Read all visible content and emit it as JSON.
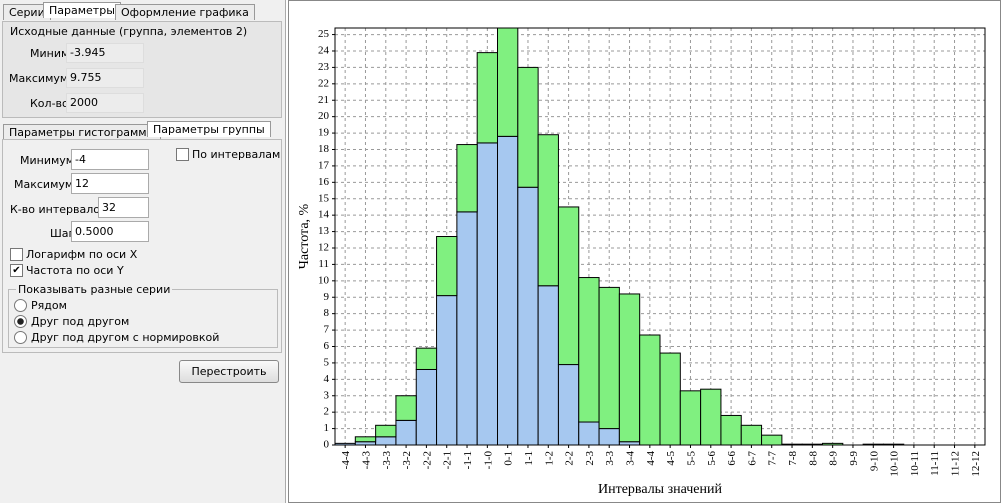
{
  "panel": {
    "tabs": [
      "Серии",
      "Параметры",
      "Оформление графика"
    ],
    "source": {
      "title": "Исходные данные (группа, элементов 2)",
      "fields": [
        {
          "label": "Минимум",
          "value": "-3.945"
        },
        {
          "label": "Максимум",
          "value": "9.755"
        },
        {
          "label": "Кол-во",
          "value": "2000"
        }
      ]
    },
    "subtabs": [
      "Параметры гистограммы",
      "Параметры группы"
    ],
    "fields": [
      {
        "label": "Минимум",
        "value": "-4"
      },
      {
        "label": "Максимум",
        "value": "12"
      },
      {
        "label": "К-во интервалов",
        "value": "32"
      },
      {
        "label": "Шаг",
        "value": "0.5000"
      }
    ],
    "checkboxes": [
      {
        "label": "По интервалам",
        "checked": false
      },
      {
        "label": "Логарифм по оси X",
        "checked": false
      },
      {
        "label": "Частота по оси Y",
        "checked": true
      }
    ],
    "series_group": {
      "title": "Показывать разные серии",
      "options": [
        "Рядом",
        "Друг под другом",
        "Друг под другом с нормировкой"
      ],
      "selected": 1
    },
    "button": "Перестроить"
  },
  "chart_data": {
    "type": "stacked-bar",
    "xlabel": "Интервалы значений",
    "ylabel": "Частота, %",
    "categories": [
      "-4-4",
      "-4-3",
      "-3-3",
      "-3-2",
      "-2-2",
      "-2-1",
      "-1-1",
      "-1-0",
      "0-1",
      "1-1",
      "1-2",
      "2-2",
      "2-3",
      "3-3",
      "3-4",
      "4-4",
      "4-5",
      "5-5",
      "5-6",
      "6-6",
      "6-7",
      "7-7",
      "7-8",
      "8-8",
      "8-9",
      "9-9",
      "9-10",
      "10-10",
      "10-11",
      "11-11",
      "11-12",
      "12-12"
    ],
    "series": [
      {
        "color": "#a6c8f0",
        "values": [
          0.1,
          0.2,
          0.5,
          1.5,
          4.6,
          9.1,
          14.2,
          18.4,
          18.8,
          15.7,
          9.7,
          4.9,
          1.4,
          1.0,
          0.2,
          0,
          0,
          0,
          0,
          0,
          0,
          0,
          0,
          0,
          0,
          0,
          0,
          0,
          0,
          0,
          0,
          0
        ]
      },
      {
        "color": "#80f080",
        "values": [
          0,
          0.3,
          0.7,
          1.5,
          1.3,
          3.6,
          4.1,
          5.5,
          6.6,
          7.3,
          9.2,
          9.6,
          8.8,
          8.6,
          9.0,
          6.7,
          5.6,
          3.3,
          3.4,
          1.8,
          1.2,
          0.6,
          0.05,
          0.05,
          0.1,
          0,
          0.05,
          0.05,
          0,
          0,
          0,
          0
        ]
      }
    ],
    "ylim": [
      0,
      25.4
    ],
    "yticks": [
      0,
      1,
      2,
      3,
      4,
      5,
      6,
      7,
      8,
      9,
      10,
      11,
      12,
      13,
      14,
      15,
      16,
      17,
      18,
      19,
      20,
      21,
      22,
      23,
      24,
      25
    ],
    "grid": true
  }
}
